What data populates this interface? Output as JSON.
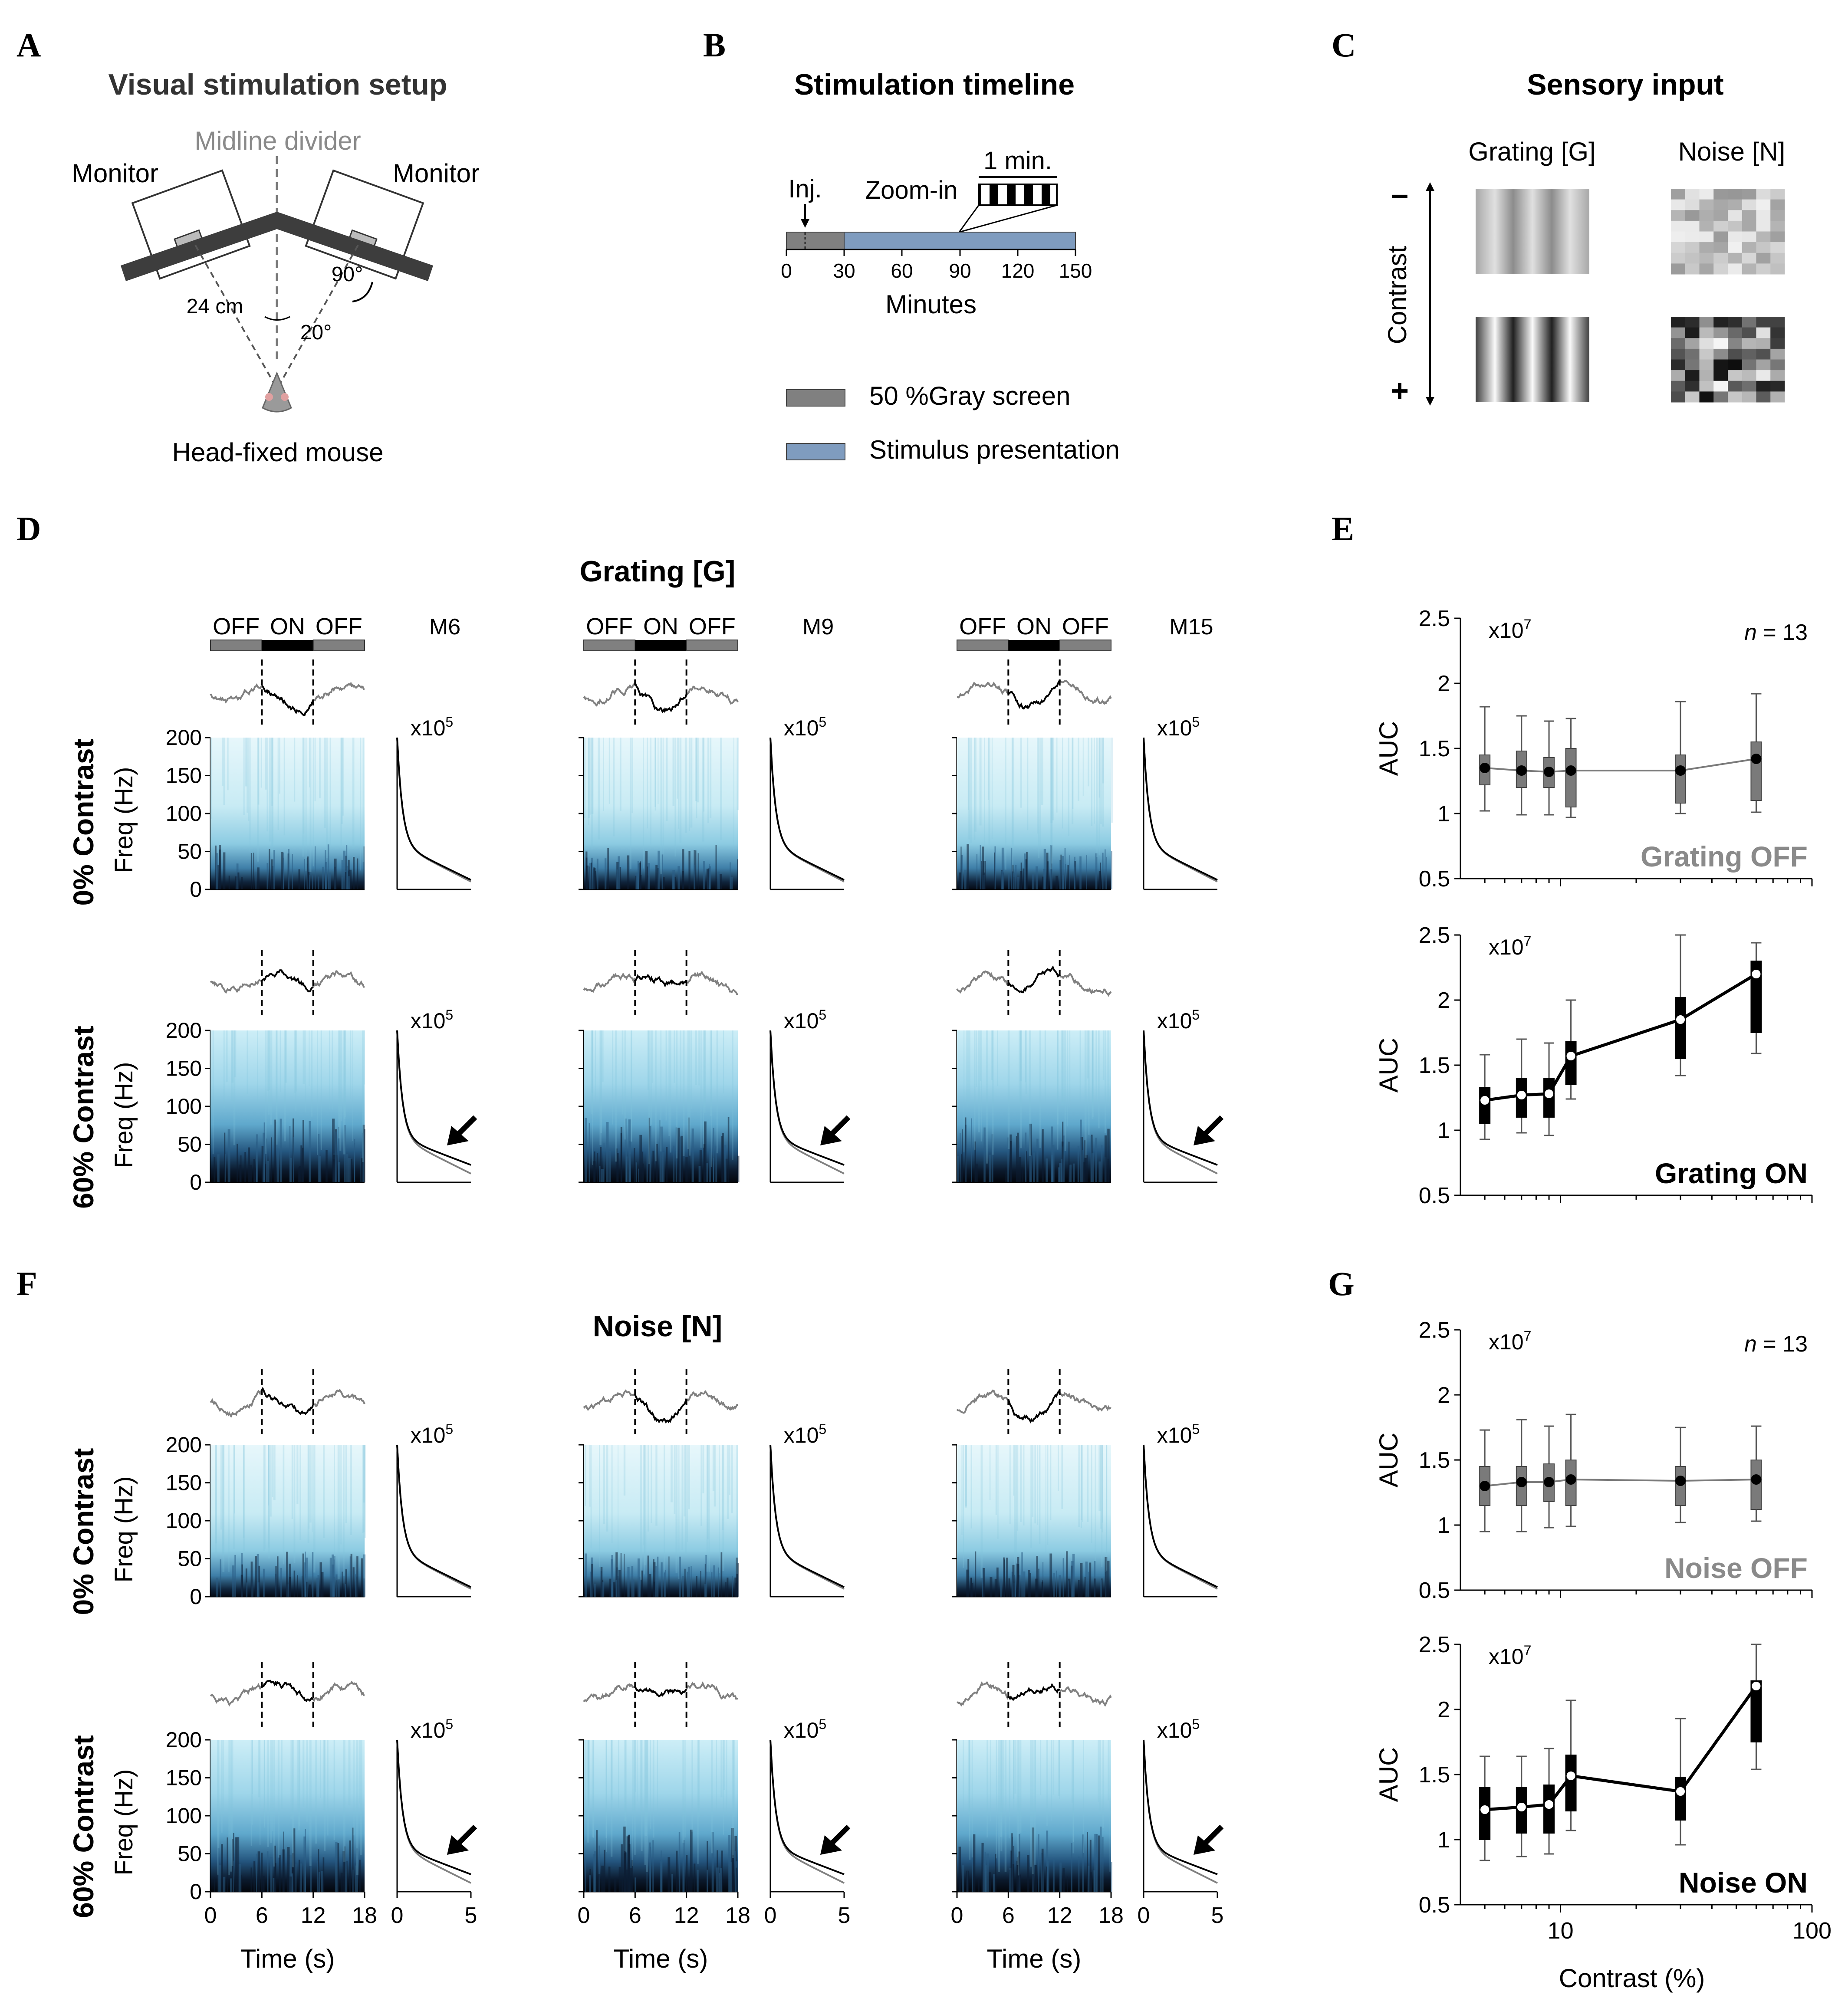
{
  "panel_letters": [
    "A",
    "B",
    "C",
    "D",
    "E",
    "F",
    "G"
  ],
  "panel_a": {
    "title": "Visual stimulation setup",
    "midline_label": "Midline divider",
    "monitor_left": "Monitor",
    "monitor_right": "Monitor",
    "distance_label": "24 cm",
    "angle_90": "90°",
    "angle_20": "20°",
    "mouse_label": "Head-fixed mouse"
  },
  "panel_b": {
    "title": "Stimulation timeline",
    "inj_label": "Inj.",
    "zoom_label": "Zoom-in",
    "one_min_label": "1 min.",
    "ticks": [
      "0",
      "30",
      "60",
      "90",
      "120",
      "150"
    ],
    "xlabel": "Minutes",
    "legend_gray": "50 %Gray screen",
    "legend_stim": "Stimulus presentation",
    "color_gray": "#808080",
    "color_stim": "#7f9cbf"
  },
  "panel_c": {
    "title": "Sensory input",
    "col_grating": "Grating [G]",
    "col_noise": "Noise [N]",
    "axis_label": "Contrast",
    "minus": "–",
    "plus": "+"
  },
  "panel_d": {
    "title": "Grating [G]",
    "stim_bar": [
      "OFF",
      "ON",
      "OFF"
    ],
    "mice": [
      "M6",
      "M9",
      "M15"
    ],
    "row_labels": [
      "0% Contrast",
      "60% Contrast"
    ],
    "ylabel": "Freq (Hz)",
    "yticks": [
      "200",
      "150",
      "100",
      "50",
      "0"
    ],
    "scale_base": "x10",
    "scale_exp": "5"
  },
  "panel_f": {
    "title": "Noise [N]",
    "row_labels": [
      "0% Contrast",
      "60% Contrast"
    ],
    "ylabel": "Freq (Hz)",
    "yticks": [
      "200",
      "150",
      "100",
      "50",
      "0"
    ],
    "time_ticks": [
      "0",
      "6",
      "12",
      "18"
    ],
    "time_xlabel": "Time (s)",
    "psd_ticks": [
      "0",
      "5"
    ],
    "scale_base": "x10",
    "scale_exp": "5"
  },
  "chart_data": [
    {
      "type": "box",
      "panel": "E-top",
      "label": "Grating OFF",
      "ylabel": "AUC",
      "scale_base": "x10",
      "scale_exp": "7",
      "n_label": "n",
      "n_value": "= 13",
      "x": [
        5,
        7,
        9,
        11,
        30,
        60
      ],
      "xscale": "log",
      "xlim": [
        4,
        100
      ],
      "ylim": [
        0.5,
        2.5
      ],
      "yticks": [
        "2.5",
        "2",
        "1.5",
        "1",
        "0.5"
      ],
      "medians": [
        1.35,
        1.33,
        1.32,
        1.33,
        1.33,
        1.42
      ],
      "q1": [
        1.22,
        1.2,
        1.2,
        1.05,
        1.08,
        1.1
      ],
      "q3": [
        1.45,
        1.48,
        1.43,
        1.5,
        1.45,
        1.55
      ],
      "whisker_low": [
        1.02,
        0.99,
        0.99,
        0.97,
        1.0,
        1.01
      ],
      "whisker_high": [
        1.82,
        1.75,
        1.71,
        1.73,
        1.86,
        1.92
      ],
      "color": "#7a7a7a"
    },
    {
      "type": "box",
      "panel": "E-bottom",
      "label": "Grating ON",
      "ylabel": "AUC",
      "scale_base": "x10",
      "scale_exp": "7",
      "x": [
        5,
        7,
        9,
        11,
        30,
        60
      ],
      "xscale": "log",
      "xlim": [
        4,
        100
      ],
      "ylim": [
        0.5,
        2.5
      ],
      "yticks": [
        "2.5",
        "2",
        "1.5",
        "1",
        "0.5"
      ],
      "medians": [
        1.23,
        1.27,
        1.28,
        1.57,
        1.85,
        2.2
      ],
      "q1": [
        1.05,
        1.1,
        1.1,
        1.35,
        1.55,
        1.75
      ],
      "q3": [
        1.33,
        1.4,
        1.4,
        1.68,
        2.02,
        2.3
      ],
      "whisker_low": [
        0.93,
        0.98,
        0.96,
        1.24,
        1.42,
        1.59
      ],
      "whisker_high": [
        1.58,
        1.7,
        1.67,
        2.0,
        2.5,
        2.44
      ],
      "color": "#000000"
    },
    {
      "type": "box",
      "panel": "G-top",
      "label": "Noise OFF",
      "ylabel": "AUC",
      "scale_base": "x10",
      "scale_exp": "7",
      "n_label": "n",
      "n_value": "= 13",
      "x": [
        5,
        7,
        9,
        11,
        30,
        60
      ],
      "xscale": "log",
      "xlim": [
        4,
        100
      ],
      "ylim": [
        0.5,
        2.5
      ],
      "yticks": [
        "2.5",
        "2",
        "1.5",
        "1",
        "0.5"
      ],
      "medians": [
        1.3,
        1.33,
        1.33,
        1.35,
        1.34,
        1.35
      ],
      "q1": [
        1.15,
        1.15,
        1.18,
        1.15,
        1.15,
        1.12
      ],
      "q3": [
        1.45,
        1.45,
        1.47,
        1.5,
        1.45,
        1.5
      ],
      "whisker_low": [
        0.95,
        0.95,
        0.98,
        0.99,
        1.02,
        1.03
      ],
      "whisker_high": [
        1.73,
        1.81,
        1.76,
        1.85,
        1.75,
        1.76
      ],
      "color": "#7a7a7a"
    },
    {
      "type": "box",
      "panel": "G-bottom",
      "label": "Noise ON",
      "ylabel": "AUC",
      "scale_base": "x10",
      "scale_exp": "7",
      "x": [
        5,
        7,
        9,
        11,
        30,
        60
      ],
      "xscale": "log",
      "xlim": [
        4,
        100
      ],
      "ylim": [
        0.5,
        2.5
      ],
      "yticks": [
        "2.5",
        "2",
        "1.5",
        "1",
        "0.5"
      ],
      "xticks": [
        "10",
        "100"
      ],
      "xlabel": "Contrast (%)",
      "medians": [
        1.23,
        1.25,
        1.27,
        1.49,
        1.37,
        2.18
      ],
      "q1": [
        1.0,
        1.05,
        1.05,
        1.22,
        1.15,
        1.75
      ],
      "q3": [
        1.4,
        1.4,
        1.42,
        1.65,
        1.48,
        2.22
      ],
      "whisker_low": [
        0.84,
        0.87,
        0.89,
        1.07,
        0.96,
        1.54
      ],
      "whisker_high": [
        1.64,
        1.64,
        1.7,
        2.07,
        1.93,
        2.5
      ],
      "color": "#000000"
    }
  ]
}
